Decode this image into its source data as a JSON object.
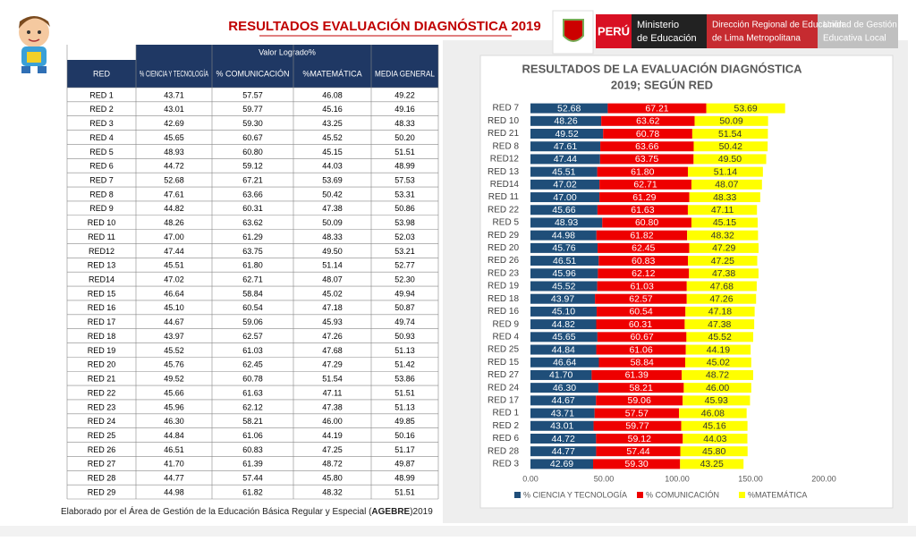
{
  "header": {
    "title": "RESULTADOS EVALUACIÓN DIAGNÓSTICA 2019",
    "peru": "PERÚ",
    "ministry": [
      "Ministerio",
      "de Educación"
    ],
    "dre": [
      "Dirección Regional de Educación",
      "de Lima Metropolitana"
    ],
    "ugel": [
      "Unidad de Gestión",
      "Educativa Local"
    ]
  },
  "table": {
    "group_header": "Valor Logrado%",
    "columns": [
      "RED",
      "% CIENCIA Y TECNOLOGÍA",
      "% COMUNICACIÓN",
      "%MATEMÁTICA",
      "MEDIA GENERAL"
    ],
    "rows": [
      [
        "RED 1",
        "43.71",
        "57.57",
        "46.08",
        "49.22"
      ],
      [
        "RED 2",
        "43.01",
        "59.77",
        "45.16",
        "49.16"
      ],
      [
        "RED 3",
        "42.69",
        "59.30",
        "43.25",
        "48.33"
      ],
      [
        "RED 4",
        "45.65",
        "60.67",
        "45.52",
        "50.20"
      ],
      [
        "RED 5",
        "48.93",
        "60.80",
        "45.15",
        "51.51"
      ],
      [
        "RED 6",
        "44.72",
        "59.12",
        "44.03",
        "48.99"
      ],
      [
        "RED 7",
        "52.68",
        "67.21",
        "53.69",
        "57.53"
      ],
      [
        "RED 8",
        "47.61",
        "63.66",
        "50.42",
        "53.31"
      ],
      [
        "RED 9",
        "44.82",
        "60.31",
        "47.38",
        "50.86"
      ],
      [
        "RED 10",
        "48.26",
        "63.62",
        "50.09",
        "53.98"
      ],
      [
        "RED 11",
        "47.00",
        "61.29",
        "48.33",
        "52.03"
      ],
      [
        "RED12",
        "47.44",
        "63.75",
        "49.50",
        "53.21"
      ],
      [
        "RED 13",
        "45.51",
        "61.80",
        "51.14",
        "52.77"
      ],
      [
        "RED14",
        "47.02",
        "62.71",
        "48.07",
        "52.30"
      ],
      [
        "RED 15",
        "46.64",
        "58.84",
        "45.02",
        "49.94"
      ],
      [
        "RED 16",
        "45.10",
        "60.54",
        "47.18",
        "50.87"
      ],
      [
        "RED 17",
        "44.67",
        "59.06",
        "45.93",
        "49.74"
      ],
      [
        "RED 18",
        "43.97",
        "62.57",
        "47.26",
        "50.93"
      ],
      [
        "RED 19",
        "45.52",
        "61.03",
        "47.68",
        "51.13"
      ],
      [
        "RED 20",
        "45.76",
        "62.45",
        "47.29",
        "51.42"
      ],
      [
        "RED 21",
        "49.52",
        "60.78",
        "51.54",
        "53.86"
      ],
      [
        "RED 22",
        "45.66",
        "61.63",
        "47.11",
        "51.51"
      ],
      [
        "RED 23",
        "45.96",
        "62.12",
        "47.38",
        "51.13"
      ],
      [
        "RED 24",
        "46.30",
        "58.21",
        "46.00",
        "49.85"
      ],
      [
        "RED 25",
        "44.84",
        "61.06",
        "44.19",
        "50.16"
      ],
      [
        "RED 26",
        "46.51",
        "60.83",
        "47.25",
        "51.17"
      ],
      [
        "RED 27",
        "41.70",
        "61.39",
        "48.72",
        "49.87"
      ],
      [
        "RED 28",
        "44.77",
        "57.44",
        "45.80",
        "48.99"
      ],
      [
        "RED 29",
        "44.98",
        "61.82",
        "48.32",
        "51.51"
      ]
    ]
  },
  "footer": [
    "Elaborado por el Área de Gestión de la Educación Básica Regular y Especial (",
    "AGEBRE",
    ")2019"
  ],
  "chart_data": {
    "type": "stacked_barh",
    "title": [
      "RESULTADOS  DE LA EVALUACIÓN DIAGNÓSTICA",
      "2019; SEGÚN RED"
    ],
    "categories": [
      "RED 7",
      "RED 10",
      "RED 21",
      "RED 8",
      "RED12",
      "RED 13",
      "RED14",
      "RED 11",
      "RED 22",
      "RED 5",
      "RED 29",
      "RED 20",
      "RED 26",
      "RED 23",
      "RED 19",
      "RED 18",
      "RED 16",
      "RED 9",
      "RED 4",
      "RED 25",
      "RED 15",
      "RED 27",
      "RED 24",
      "RED 17",
      "RED 1",
      "RED 2",
      "RED 6",
      "RED 28",
      "RED 3"
    ],
    "series": [
      {
        "name": "% CIENCIA Y TECNOLOGÍA",
        "color": "#1f4e79",
        "label_color": "#ffffff",
        "values": [
          52.68,
          48.26,
          49.52,
          47.61,
          47.44,
          45.51,
          47.02,
          47.0,
          45.66,
          48.93,
          44.98,
          45.76,
          46.51,
          45.96,
          45.52,
          43.97,
          45.1,
          44.82,
          45.65,
          44.84,
          46.64,
          41.7,
          46.3,
          44.67,
          43.71,
          43.01,
          44.72,
          44.77,
          42.69
        ],
        "value_labels": [
          "52.68",
          "48.26",
          "49.52",
          "47.61",
          "47.44",
          "45.51",
          "47.02",
          "47.00",
          "45.66",
          "48.93",
          "44.98",
          "45.76",
          "46.51",
          "45.96",
          "45.52",
          "43.97",
          "45.10",
          "44.82",
          "45.65",
          "44.84",
          "46.64",
          "41.70",
          "46.30",
          "44.67",
          "43.71",
          "43.01",
          "44.72",
          "44.77",
          "42.69"
        ]
      },
      {
        "name": "% COMUNICACIÓN",
        "color": "#ee0000",
        "label_color": "#ffffff",
        "values": [
          67.21,
          63.62,
          60.78,
          63.66,
          63.75,
          61.8,
          62.71,
          61.29,
          61.63,
          60.8,
          61.82,
          62.45,
          60.83,
          62.12,
          61.03,
          62.57,
          60.54,
          60.31,
          60.67,
          61.06,
          58.84,
          61.39,
          58.21,
          59.06,
          57.57,
          59.77,
          59.12,
          57.44,
          59.3
        ],
        "value_labels": [
          "67.21",
          "63.62",
          "60.78",
          "63.66",
          "63.75",
          "61.80",
          "62.71",
          "61.29",
          "61.63",
          "60.80",
          "61.82",
          "62.45",
          "60.83",
          "62.12",
          "61.03",
          "62.57",
          "60.54",
          "60.31",
          "60.67",
          "61.06",
          "58.84",
          "61.39",
          "58.21",
          "59.06",
          "57.57",
          "59.77",
          "59.12",
          "57.44",
          "59.30"
        ]
      },
      {
        "name": "%MATEMÁTICA",
        "color": "#ffff00",
        "label_color": "#333333",
        "values": [
          53.69,
          50.09,
          51.54,
          50.42,
          49.5,
          51.14,
          48.07,
          48.33,
          47.11,
          45.15,
          48.32,
          47.29,
          47.25,
          47.38,
          47.68,
          47.26,
          47.18,
          47.38,
          45.52,
          44.19,
          45.02,
          48.72,
          46.0,
          45.93,
          46.08,
          45.16,
          44.03,
          45.8,
          43.25
        ],
        "value_labels": [
          "53.69",
          "50.09",
          "51.54",
          "50.42",
          "49.50",
          "51.14",
          "48.07",
          "48.33",
          "47.11",
          "45.15",
          "48.32",
          "47.29",
          "47.25",
          "47.38",
          "47.68",
          "47.26",
          "47.18",
          "47.38",
          "45.52",
          "44.19",
          "45.02",
          "48.72",
          "46.00",
          "45.93",
          "46.08",
          "45.16",
          "44.03",
          "45.80",
          "43.25"
        ]
      }
    ],
    "xlim": [
      0,
      200
    ],
    "xticks": [
      {
        "value": 0,
        "label": "0.00"
      },
      {
        "value": 50,
        "label": "50.00"
      },
      {
        "value": 100,
        "label": "100.00"
      },
      {
        "value": 150,
        "label": "150.00"
      },
      {
        "value": 200,
        "label": "200.00"
      }
    ],
    "legend": "bottom"
  }
}
